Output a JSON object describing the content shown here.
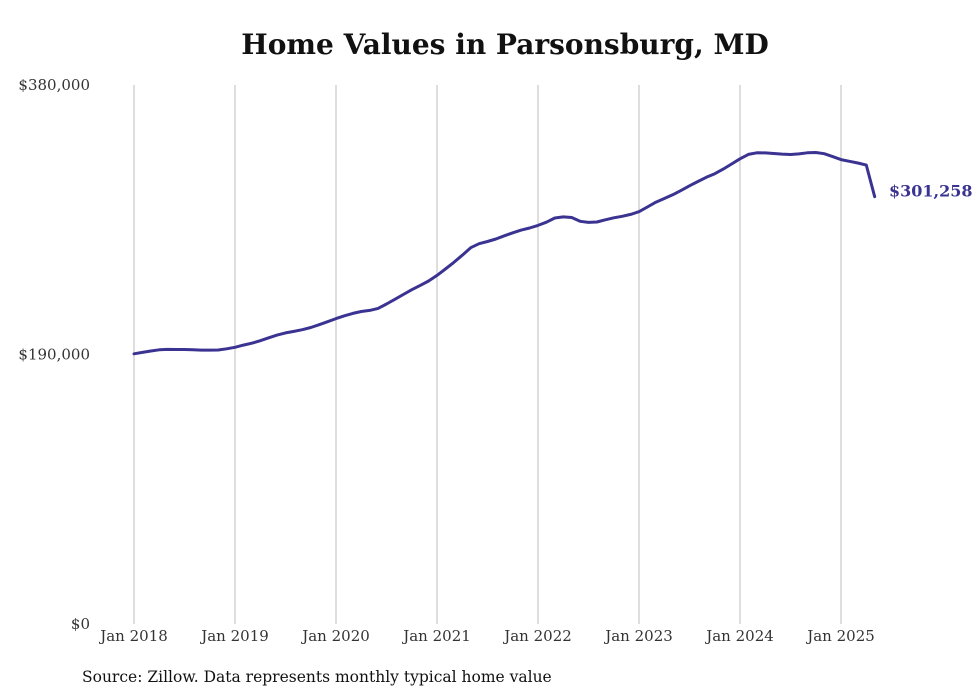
{
  "chart_data": {
    "type": "line",
    "title": "Home Values in Parsonsburg, MD",
    "xlabel": "",
    "ylabel": "",
    "x_tick_labels": [
      "Jan 2018",
      "Jan 2019",
      "Jan 2020",
      "Jan 2021",
      "Jan 2022",
      "Jan 2023",
      "Jan 2024",
      "Jan 2025"
    ],
    "y_tick_labels": [
      "$380,000",
      "$190,000",
      "$0"
    ],
    "y_ticks": [
      380000,
      190000,
      0
    ],
    "ylim": [
      0,
      380000
    ],
    "xlim": [
      "2018-01",
      "2025-05"
    ],
    "grid": "vertical",
    "end_label": "$301,258",
    "line_color": "#3a3391",
    "series": [
      {
        "x": [
          "2018-01",
          "2018-02",
          "2018-03",
          "2018-04",
          "2018-05",
          "2018-06",
          "2018-07",
          "2018-08",
          "2018-09",
          "2018-10",
          "2018-11",
          "2018-12",
          "2019-01",
          "2019-02",
          "2019-03",
          "2019-04",
          "2019-05",
          "2019-06",
          "2019-07",
          "2019-08",
          "2019-09",
          "2019-10",
          "2019-11",
          "2019-12",
          "2020-01",
          "2020-02",
          "2020-03",
          "2020-04",
          "2020-05",
          "2020-06",
          "2020-07",
          "2020-08",
          "2020-09",
          "2020-10",
          "2020-11",
          "2020-12",
          "2021-01",
          "2021-02",
          "2021-03",
          "2021-04",
          "2021-05",
          "2021-06",
          "2021-07",
          "2021-08",
          "2021-09",
          "2021-10",
          "2021-11",
          "2021-12",
          "2022-01",
          "2022-02",
          "2022-03",
          "2022-04",
          "2022-05",
          "2022-06",
          "2022-07",
          "2022-08",
          "2022-09",
          "2022-10",
          "2022-11",
          "2022-12",
          "2023-01",
          "2023-02",
          "2023-03",
          "2023-04",
          "2023-05",
          "2023-06",
          "2023-07",
          "2023-08",
          "2023-09",
          "2023-10",
          "2023-11",
          "2023-12",
          "2024-01",
          "2024-02",
          "2024-03",
          "2024-04",
          "2024-05",
          "2024-06",
          "2024-07",
          "2024-08",
          "2024-09",
          "2024-10",
          "2024-11",
          "2024-12",
          "2025-01",
          "2025-02",
          "2025-03",
          "2025-04",
          "2025-05"
        ],
        "values": [
          190500,
          191500,
          192500,
          193300,
          193600,
          193500,
          193500,
          193300,
          193100,
          193100,
          193200,
          194000,
          195100,
          196600,
          198000,
          199700,
          201800,
          203700,
          205200,
          206300,
          207500,
          209000,
          211000,
          213100,
          215300,
          217300,
          219000,
          220300,
          221100,
          222500,
          225600,
          228900,
          232300,
          235700,
          238700,
          241800,
          245800,
          250300,
          254900,
          260000,
          265300,
          268100,
          269700,
          271400,
          273700,
          275800,
          277700,
          279200,
          281000,
          283300,
          286200,
          287000,
          286600,
          283900,
          283100,
          283400,
          285000,
          286400,
          287400,
          288800,
          290700,
          294000,
          297400,
          300000,
          302600,
          305700,
          308900,
          312000,
          314900,
          317500,
          320700,
          324300,
          328000,
          331100,
          332200,
          332100,
          331700,
          331300,
          331000,
          331400,
          332200,
          332400,
          331600,
          329500,
          327400,
          326200,
          325000,
          323500,
          301258
        ]
      }
    ]
  }
}
